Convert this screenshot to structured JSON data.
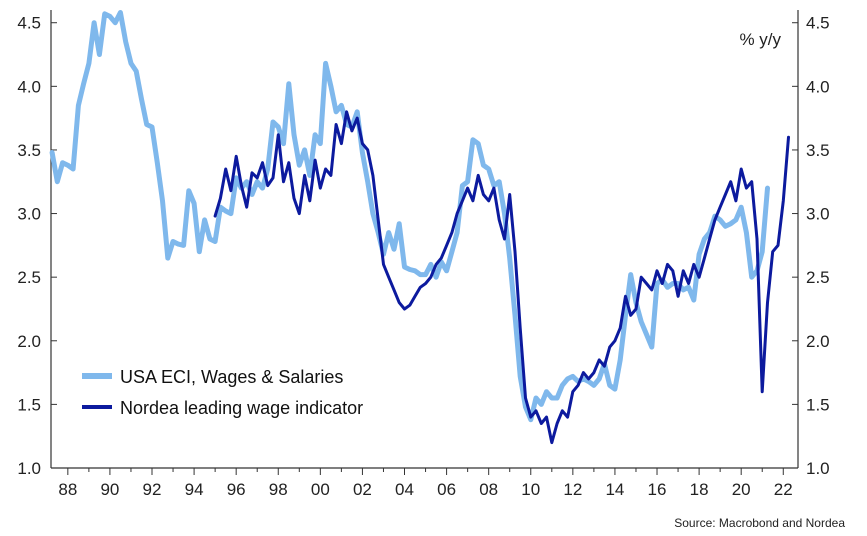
{
  "chart_data": {
    "type": "line",
    "unit_label": "% y/y",
    "source": "Source: Macrobond and Nordea",
    "y_ticks": [
      "1.0",
      "1.5",
      "2.0",
      "2.5",
      "3.0",
      "3.5",
      "4.0",
      "4.5"
    ],
    "x_ticks": [
      "88",
      "90",
      "92",
      "94",
      "96",
      "98",
      "00",
      "02",
      "04",
      "06",
      "08",
      "10",
      "12",
      "14",
      "16",
      "18",
      "20",
      "22"
    ],
    "ylim": [
      1.0,
      4.6
    ],
    "xlim": [
      1987.2,
      2022.7
    ],
    "grid": false,
    "legend_position": "bottom-left",
    "series": [
      {
        "name": "USA ECI, Wages & Salaries",
        "color": "#7fb8ec",
        "points": [
          [
            1987.25,
            3.48
          ],
          [
            1987.5,
            3.25
          ],
          [
            1987.75,
            3.4
          ],
          [
            1988.0,
            3.38
          ],
          [
            1988.25,
            3.35
          ],
          [
            1988.5,
            3.85
          ],
          [
            1988.75,
            4.02
          ],
          [
            1989.0,
            4.18
          ],
          [
            1989.25,
            4.5
          ],
          [
            1989.5,
            4.25
          ],
          [
            1989.75,
            4.57
          ],
          [
            1990.0,
            4.55
          ],
          [
            1990.25,
            4.5
          ],
          [
            1990.5,
            4.58
          ],
          [
            1990.75,
            4.35
          ],
          [
            1991.0,
            4.18
          ],
          [
            1991.25,
            4.12
          ],
          [
            1991.5,
            3.9
          ],
          [
            1991.75,
            3.7
          ],
          [
            1992.0,
            3.68
          ],
          [
            1992.25,
            3.4
          ],
          [
            1992.5,
            3.1
          ],
          [
            1992.75,
            2.65
          ],
          [
            1993.0,
            2.78
          ],
          [
            1993.25,
            2.76
          ],
          [
            1993.5,
            2.75
          ],
          [
            1993.75,
            3.18
          ],
          [
            1994.0,
            3.08
          ],
          [
            1994.25,
            2.7
          ],
          [
            1994.5,
            2.95
          ],
          [
            1994.75,
            2.8
          ],
          [
            1995.0,
            2.78
          ],
          [
            1995.25,
            3.05
          ],
          [
            1995.5,
            3.02
          ],
          [
            1995.75,
            3.0
          ],
          [
            1996.0,
            3.28
          ],
          [
            1996.25,
            3.2
          ],
          [
            1996.5,
            3.25
          ],
          [
            1996.75,
            3.15
          ],
          [
            1997.0,
            3.25
          ],
          [
            1997.25,
            3.2
          ],
          [
            1997.5,
            3.35
          ],
          [
            1997.75,
            3.72
          ],
          [
            1998.0,
            3.68
          ],
          [
            1998.25,
            3.55
          ],
          [
            1998.5,
            4.02
          ],
          [
            1998.75,
            3.62
          ],
          [
            1999.0,
            3.38
          ],
          [
            1999.25,
            3.5
          ],
          [
            1999.5,
            3.3
          ],
          [
            1999.75,
            3.62
          ],
          [
            2000.0,
            3.55
          ],
          [
            2000.25,
            4.18
          ],
          [
            2000.5,
            4.0
          ],
          [
            2000.75,
            3.8
          ],
          [
            2001.0,
            3.85
          ],
          [
            2001.25,
            3.7
          ],
          [
            2001.5,
            3.68
          ],
          [
            2001.75,
            3.8
          ],
          [
            2002.0,
            3.48
          ],
          [
            2002.25,
            3.25
          ],
          [
            2002.5,
            3.0
          ],
          [
            2002.75,
            2.85
          ],
          [
            2003.0,
            2.68
          ],
          [
            2003.25,
            2.85
          ],
          [
            2003.5,
            2.72
          ],
          [
            2003.75,
            2.92
          ],
          [
            2004.0,
            2.58
          ],
          [
            2004.25,
            2.56
          ],
          [
            2004.5,
            2.55
          ],
          [
            2004.75,
            2.52
          ],
          [
            2005.0,
            2.52
          ],
          [
            2005.25,
            2.6
          ],
          [
            2005.5,
            2.5
          ],
          [
            2005.75,
            2.62
          ],
          [
            2006.0,
            2.55
          ],
          [
            2006.25,
            2.7
          ],
          [
            2006.5,
            2.85
          ],
          [
            2006.75,
            3.22
          ],
          [
            2007.0,
            3.25
          ],
          [
            2007.25,
            3.58
          ],
          [
            2007.5,
            3.55
          ],
          [
            2007.75,
            3.38
          ],
          [
            2008.0,
            3.35
          ],
          [
            2008.25,
            3.22
          ],
          [
            2008.5,
            3.25
          ],
          [
            2008.75,
            3.0
          ],
          [
            2009.0,
            2.65
          ],
          [
            2009.25,
            2.2
          ],
          [
            2009.5,
            1.72
          ],
          [
            2009.75,
            1.48
          ],
          [
            2010.0,
            1.38
          ],
          [
            2010.25,
            1.55
          ],
          [
            2010.5,
            1.5
          ],
          [
            2010.75,
            1.6
          ],
          [
            2011.0,
            1.55
          ],
          [
            2011.25,
            1.55
          ],
          [
            2011.5,
            1.65
          ],
          [
            2011.75,
            1.7
          ],
          [
            2012.0,
            1.72
          ],
          [
            2012.25,
            1.68
          ],
          [
            2012.5,
            1.7
          ],
          [
            2012.75,
            1.68
          ],
          [
            2013.0,
            1.65
          ],
          [
            2013.25,
            1.7
          ],
          [
            2013.5,
            1.82
          ],
          [
            2013.75,
            1.65
          ],
          [
            2014.0,
            1.62
          ],
          [
            2014.25,
            1.85
          ],
          [
            2014.5,
            2.2
          ],
          [
            2014.75,
            2.52
          ],
          [
            2015.0,
            2.3
          ],
          [
            2015.25,
            2.15
          ],
          [
            2015.5,
            2.05
          ],
          [
            2015.75,
            1.95
          ],
          [
            2016.0,
            2.45
          ],
          [
            2016.25,
            2.48
          ],
          [
            2016.5,
            2.42
          ],
          [
            2016.75,
            2.45
          ],
          [
            2017.0,
            2.45
          ],
          [
            2017.25,
            2.4
          ],
          [
            2017.5,
            2.42
          ],
          [
            2017.75,
            2.32
          ],
          [
            2018.0,
            2.68
          ],
          [
            2018.25,
            2.8
          ],
          [
            2018.5,
            2.85
          ],
          [
            2018.75,
            2.98
          ],
          [
            2019.0,
            2.95
          ],
          [
            2019.25,
            2.9
          ],
          [
            2019.5,
            2.92
          ],
          [
            2019.75,
            2.95
          ],
          [
            2020.0,
            3.05
          ],
          [
            2020.25,
            2.85
          ],
          [
            2020.5,
            2.5
          ],
          [
            2020.75,
            2.55
          ],
          [
            2021.0,
            2.7
          ],
          [
            2021.25,
            3.2
          ]
        ]
      },
      {
        "name": "Nordea leading wage indicator",
        "color": "#0c1a9e",
        "points": [
          [
            1995.0,
            2.98
          ],
          [
            1995.25,
            3.12
          ],
          [
            1995.5,
            3.35
          ],
          [
            1995.75,
            3.18
          ],
          [
            1996.0,
            3.45
          ],
          [
            1996.25,
            3.22
          ],
          [
            1996.5,
            3.05
          ],
          [
            1996.75,
            3.32
          ],
          [
            1997.0,
            3.28
          ],
          [
            1997.25,
            3.4
          ],
          [
            1997.5,
            3.22
          ],
          [
            1997.75,
            3.28
          ],
          [
            1998.0,
            3.62
          ],
          [
            1998.25,
            3.25
          ],
          [
            1998.5,
            3.4
          ],
          [
            1998.75,
            3.12
          ],
          [
            1999.0,
            3.0
          ],
          [
            1999.25,
            3.3
          ],
          [
            1999.5,
            3.1
          ],
          [
            1999.75,
            3.42
          ],
          [
            2000.0,
            3.2
          ],
          [
            2000.25,
            3.35
          ],
          [
            2000.5,
            3.3
          ],
          [
            2000.75,
            3.7
          ],
          [
            2001.0,
            3.55
          ],
          [
            2001.25,
            3.8
          ],
          [
            2001.5,
            3.65
          ],
          [
            2001.75,
            3.75
          ],
          [
            2002.0,
            3.55
          ],
          [
            2002.25,
            3.5
          ],
          [
            2002.5,
            3.3
          ],
          [
            2002.75,
            2.95
          ],
          [
            2003.0,
            2.6
          ],
          [
            2003.25,
            2.5
          ],
          [
            2003.5,
            2.4
          ],
          [
            2003.75,
            2.3
          ],
          [
            2004.0,
            2.25
          ],
          [
            2004.25,
            2.28
          ],
          [
            2004.5,
            2.35
          ],
          [
            2004.75,
            2.42
          ],
          [
            2005.0,
            2.45
          ],
          [
            2005.25,
            2.5
          ],
          [
            2005.5,
            2.6
          ],
          [
            2005.75,
            2.65
          ],
          [
            2006.0,
            2.75
          ],
          [
            2006.25,
            2.85
          ],
          [
            2006.5,
            3.0
          ],
          [
            2006.75,
            3.1
          ],
          [
            2007.0,
            3.2
          ],
          [
            2007.25,
            3.1
          ],
          [
            2007.5,
            3.3
          ],
          [
            2007.75,
            3.15
          ],
          [
            2008.0,
            3.1
          ],
          [
            2008.25,
            3.2
          ],
          [
            2008.5,
            2.95
          ],
          [
            2008.75,
            2.8
          ],
          [
            2009.0,
            3.15
          ],
          [
            2009.25,
            2.7
          ],
          [
            2009.5,
            2.1
          ],
          [
            2009.75,
            1.55
          ],
          [
            2010.0,
            1.4
          ],
          [
            2010.25,
            1.45
          ],
          [
            2010.5,
            1.35
          ],
          [
            2010.75,
            1.4
          ],
          [
            2011.0,
            1.2
          ],
          [
            2011.25,
            1.35
          ],
          [
            2011.5,
            1.45
          ],
          [
            2011.75,
            1.4
          ],
          [
            2012.0,
            1.6
          ],
          [
            2012.25,
            1.65
          ],
          [
            2012.5,
            1.75
          ],
          [
            2012.75,
            1.7
          ],
          [
            2013.0,
            1.75
          ],
          [
            2013.25,
            1.85
          ],
          [
            2013.5,
            1.8
          ],
          [
            2013.75,
            1.95
          ],
          [
            2014.0,
            2.0
          ],
          [
            2014.25,
            2.1
          ],
          [
            2014.5,
            2.35
          ],
          [
            2014.75,
            2.2
          ],
          [
            2015.0,
            2.25
          ],
          [
            2015.25,
            2.5
          ],
          [
            2015.5,
            2.45
          ],
          [
            2015.75,
            2.4
          ],
          [
            2016.0,
            2.55
          ],
          [
            2016.25,
            2.45
          ],
          [
            2016.5,
            2.6
          ],
          [
            2016.75,
            2.55
          ],
          [
            2017.0,
            2.35
          ],
          [
            2017.25,
            2.55
          ],
          [
            2017.5,
            2.45
          ],
          [
            2017.75,
            2.6
          ],
          [
            2018.0,
            2.5
          ],
          [
            2018.25,
            2.65
          ],
          [
            2018.5,
            2.8
          ],
          [
            2018.75,
            2.95
          ],
          [
            2019.0,
            3.05
          ],
          [
            2019.25,
            3.15
          ],
          [
            2019.5,
            3.25
          ],
          [
            2019.75,
            3.1
          ],
          [
            2020.0,
            3.35
          ],
          [
            2020.25,
            3.2
          ],
          [
            2020.5,
            3.25
          ],
          [
            2020.75,
            2.8
          ],
          [
            2021.0,
            1.6
          ],
          [
            2021.25,
            2.3
          ],
          [
            2021.5,
            2.7
          ],
          [
            2021.75,
            2.75
          ],
          [
            2022.0,
            3.1
          ],
          [
            2022.25,
            3.6
          ]
        ]
      }
    ]
  }
}
